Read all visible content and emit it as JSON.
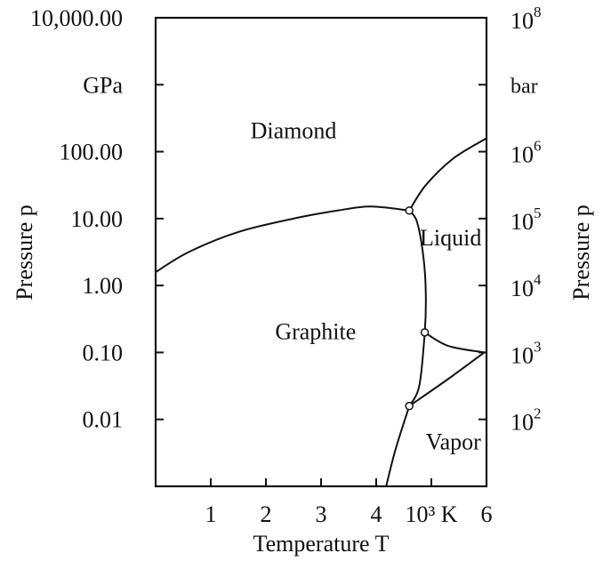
{
  "chart_data": {
    "type": "line",
    "title": "",
    "xlabel": "Temperature T",
    "ylabel_left": "Pressure p",
    "ylabel_right": "Pressure p",
    "left_unit": "GPa",
    "right_unit": "bar",
    "x_unit_tick": "10³ K",
    "xlim": [
      0,
      6
    ],
    "ylim_log10_gpa": [
      -3,
      4
    ],
    "x_ticks": [
      {
        "value": 1,
        "label": "1"
      },
      {
        "value": 2,
        "label": "2"
      },
      {
        "value": 3,
        "label": "3"
      },
      {
        "value": 4,
        "label": "4"
      },
      {
        "value": 5,
        "label": "10³ K"
      },
      {
        "value": 6,
        "label": "6"
      }
    ],
    "y_left_ticks": [
      {
        "log": 4,
        "label": "10,000.00"
      },
      {
        "log": 3,
        "label": "GPa"
      },
      {
        "log": 2,
        "label": "100.00"
      },
      {
        "log": 1,
        "label": "10.00"
      },
      {
        "log": 0,
        "label": "1.00"
      },
      {
        "log": -1,
        "label": "0.10"
      },
      {
        "log": -2,
        "label": "0.01"
      }
    ],
    "y_right_ticks": [
      {
        "log": 4,
        "base": "10",
        "exp": "8"
      },
      {
        "log": 3,
        "label": "bar"
      },
      {
        "log": 2,
        "base": "10",
        "exp": "6"
      },
      {
        "log": 1,
        "base": "10",
        "exp": "5"
      },
      {
        "log": 0,
        "base": "10",
        "exp": "4"
      },
      {
        "log": -1,
        "base": "10",
        "exp": "3"
      },
      {
        "log": -2,
        "base": "10",
        "exp": "2"
      }
    ],
    "regions": [
      {
        "label": "Diamond",
        "x": 2.5,
        "log_p": 2.2
      },
      {
        "label": "Liquid",
        "x": 5.35,
        "log_p": 0.6
      },
      {
        "label": "Graphite",
        "x": 2.9,
        "log_p": -0.8
      },
      {
        "label": "Vapor",
        "x": 5.4,
        "log_p": -2.45
      }
    ],
    "series": [
      {
        "points": [
          [
            0,
            0.2
          ],
          [
            0.6,
            0.5
          ],
          [
            1.5,
            0.8
          ],
          [
            2.5,
            1.0
          ],
          [
            3.3,
            1.12
          ],
          [
            3.9,
            1.18
          ],
          [
            4.6,
            1.12
          ]
        ]
      },
      {
        "points": [
          [
            4.6,
            1.12
          ],
          [
            4.9,
            1.5
          ],
          [
            5.4,
            1.9
          ],
          [
            6.0,
            2.2
          ]
        ]
      },
      {
        "points": [
          [
            4.6,
            1.12
          ],
          [
            4.74,
            0.95
          ],
          [
            4.86,
            0.4
          ],
          [
            4.9,
            -0.15
          ],
          [
            4.88,
            -0.7
          ],
          [
            4.78,
            -1.5
          ],
          [
            4.6,
            -1.8
          ]
        ]
      },
      {
        "points": [
          [
            4.88,
            -0.7
          ],
          [
            5.3,
            -0.9
          ],
          [
            5.96,
            -1.0
          ]
        ]
      },
      {
        "points": [
          [
            5.96,
            -1.0
          ],
          [
            5.3,
            -1.4
          ],
          [
            4.6,
            -1.8
          ]
        ]
      },
      {
        "points": [
          [
            4.6,
            -1.8
          ],
          [
            4.35,
            -2.45
          ],
          [
            4.18,
            -3.0
          ]
        ]
      }
    ],
    "triple_points": [
      {
        "x": 4.6,
        "log_p": 1.12
      },
      {
        "x": 4.88,
        "log_p": -0.7
      },
      {
        "x": 4.6,
        "log_p": -1.8
      }
    ]
  }
}
